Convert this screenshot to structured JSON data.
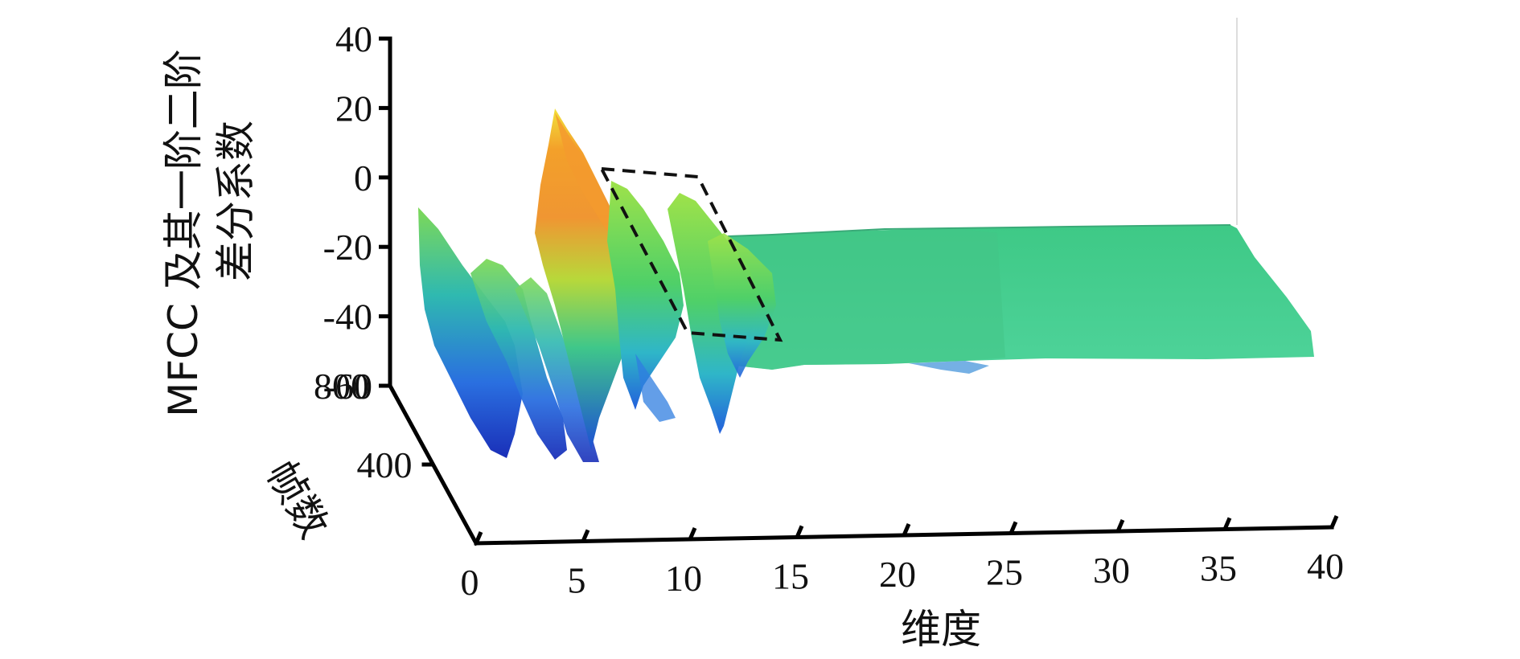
{
  "chart_data": {
    "type": "surface",
    "title": "",
    "xlabel": "维度",
    "ylabel": "帧数",
    "zlabel_lines": [
      "MFCC 及其一阶二阶",
      "差分系数"
    ],
    "x_ticks": [
      "0",
      "5",
      "10",
      "15",
      "20",
      "25",
      "30",
      "35",
      "40"
    ],
    "y_ticks": [
      "400",
      "800"
    ],
    "z_ticks": [
      "40",
      "20",
      "0",
      "-20",
      "-40",
      "-60"
    ],
    "xlim": [
      0,
      40
    ],
    "ylim": [
      0,
      800
    ],
    "zlim": [
      -60,
      40
    ],
    "grid": false,
    "colormap": "parula",
    "dimension_profile": [
      {
        "dim": 0,
        "z": -15
      },
      {
        "dim": 1,
        "z": -45
      },
      {
        "dim": 2,
        "z": -30
      },
      {
        "dim": 3,
        "z": -50
      },
      {
        "dim": 4,
        "z": -40
      },
      {
        "dim": 5,
        "z": 18
      },
      {
        "dim": 6,
        "z": 0
      },
      {
        "dim": 7,
        "z": -10
      },
      {
        "dim": 8,
        "z": -55
      },
      {
        "dim": 9,
        "z": -5
      },
      {
        "dim": 10,
        "z": -30
      },
      {
        "dim": 11,
        "z": -50
      },
      {
        "dim": 12,
        "z": -25
      },
      {
        "dim": 13,
        "z": -26
      },
      {
        "dim": 20,
        "z": -27
      },
      {
        "dim": 30,
        "z": -27
      },
      {
        "dim": 39,
        "z": -27
      }
    ],
    "highlight_region": {
      "dims": [
        5,
        13
      ],
      "style": "dashed-box"
    }
  },
  "colors": {
    "surface_flat": "#47c98c",
    "peak": "#f6a020",
    "low": "#1f4fd8",
    "axis": "#000000"
  }
}
